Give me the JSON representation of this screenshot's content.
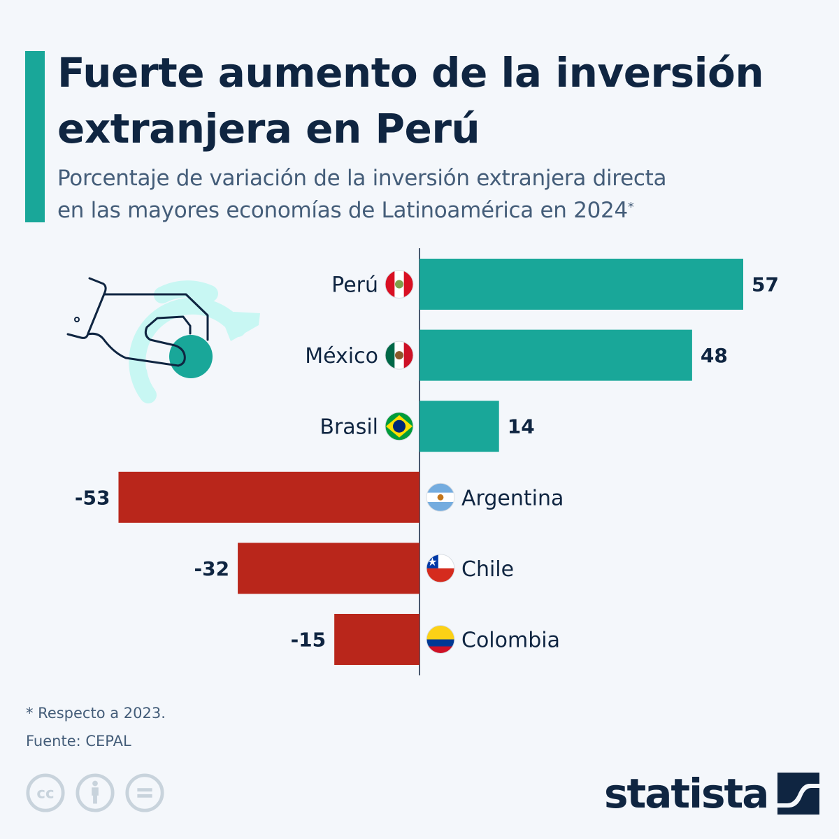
{
  "header": {
    "title_line1": "Fuerte aumento de la inversión",
    "title_line2": "extranjera en Perú",
    "subtitle_line1": "Porcentaje de variación de la inversión extranjera directa",
    "subtitle_line2": "en las mayores economías de Latinoamérica en 2024",
    "subtitle_marker": "*"
  },
  "colors": {
    "positive": "#19a799",
    "negative": "#b9261b",
    "text": "#0f2541",
    "accent": "#19a799",
    "illustration_light": "#c8f7f3"
  },
  "chart_data": {
    "type": "bar",
    "orientation": "horizontal",
    "title": "Fuerte aumento de la inversión extranjera en Perú",
    "subtitle": "Porcentaje de variación de la inversión extranjera directa en las mayores economías de Latinoamérica en 2024*",
    "xlabel": "",
    "ylabel": "",
    "unit": "%",
    "categories": [
      "Perú",
      "México",
      "Brasil",
      "Argentina",
      "Chile",
      "Colombia"
    ],
    "values": [
      57,
      48,
      14,
      -53,
      -32,
      -15
    ],
    "value_labels": [
      "57",
      "48",
      "14",
      "-53",
      "-32",
      "-15"
    ],
    "flags": [
      "peru-flag",
      "mexico-flag",
      "brazil-flag",
      "argentina-flag",
      "chile-flag",
      "colombia-flag"
    ],
    "xlim": [
      -53,
      57
    ],
    "grid": false,
    "legend": "none"
  },
  "footer": {
    "note": "* Respecto a 2023.",
    "source": "Fuente: CEPAL",
    "license_icons": [
      "cc-icon",
      "attribution-icon",
      "no-derivatives-icon"
    ],
    "brand": "statista"
  }
}
